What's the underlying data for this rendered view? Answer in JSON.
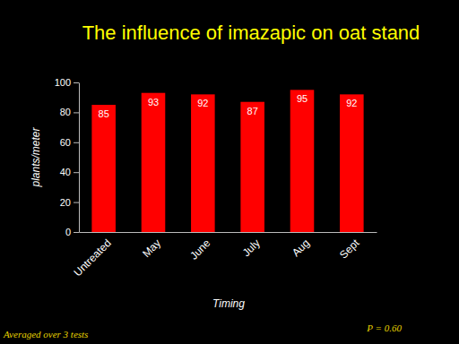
{
  "chart_data": {
    "type": "bar",
    "title": "The influence of imazapic on oat stand",
    "categories": [
      "Untreated",
      "May",
      "June",
      "July",
      "Aug",
      "Sept"
    ],
    "values": [
      85,
      93,
      92,
      87,
      95,
      92
    ],
    "color": "#ff0000",
    "x_label": "Timing",
    "y_label": "plants/meter",
    "ylim": [
      0,
      100
    ],
    "yticks": [
      0,
      20,
      40,
      60,
      80,
      100
    ],
    "grid": false,
    "data_labels": true,
    "annotations": [
      "Averaged over 3 tests",
      "P = 0.60"
    ]
  }
}
